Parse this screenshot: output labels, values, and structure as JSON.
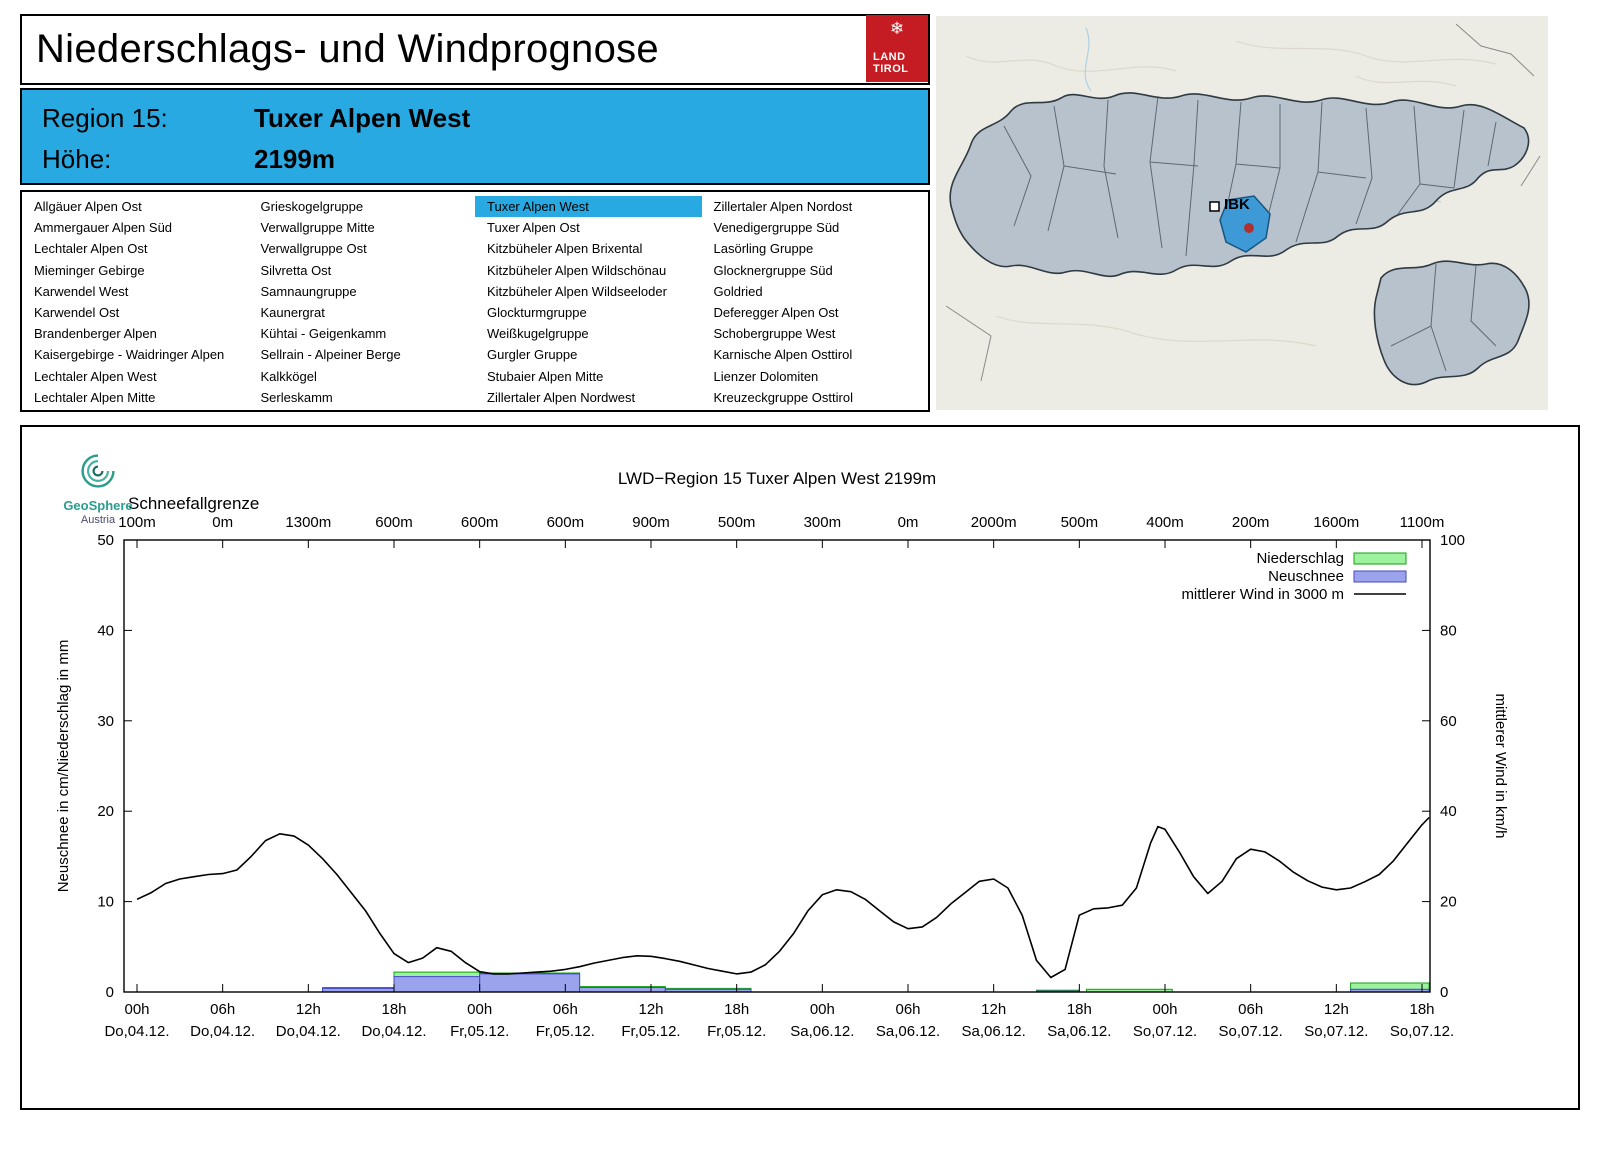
{
  "page_title": "Niederschlags- und Windprognose",
  "logo": {
    "snowflake": "❄",
    "line1": "LAND",
    "line2": "TIROL"
  },
  "region_info": {
    "region_label": "Region 15:",
    "region_value": "Tuxer Alpen West",
    "altitude_label": "Höhe:",
    "altitude_value": "2199m"
  },
  "map": {
    "city_label": "IBK"
  },
  "regions": {
    "selected": "Tuxer Alpen West",
    "columns": [
      [
        "Allgäuer Alpen Ost",
        "Ammergauer Alpen Süd",
        "Lechtaler Alpen Ost",
        "Mieminger Gebirge",
        "Karwendel West",
        "Karwendel Ost",
        "Brandenberger Alpen",
        "Kaisergebirge - Waidringer Alpen",
        "Lechtaler Alpen West",
        "Lechtaler Alpen Mitte"
      ],
      [
        "Grieskogelgruppe",
        "Verwallgruppe Mitte",
        "Verwallgruppe Ost",
        "Silvretta Ost",
        "Samnaungruppe",
        "Kaunergrat",
        "Kühtai - Geigenkamm",
        "Sellrain - Alpeiner Berge",
        "Kalkkögel",
        "Serleskamm"
      ],
      [
        "Tuxer Alpen West",
        "Tuxer Alpen Ost",
        "Kitzbüheler Alpen Brixental",
        "Kitzbüheler Alpen Wildschönau",
        "Kitzbüheler Alpen Wildseeloder",
        "Glockturmgruppe",
        "Weißkugelgruppe",
        "Gurgler Gruppe",
        "Stubaier Alpen Mitte",
        "Zillertaler Alpen Nordwest"
      ],
      [
        "Zillertaler Alpen Nordost",
        "Venedigergruppe Süd",
        "Lasörling Gruppe",
        "Glocknergruppe Süd",
        "Goldried",
        "Deferegger Alpen Ost",
        "Schobergruppe West",
        "Karnische Alpen Osttirol",
        "Lienzer Dolomiten",
        "Kreuzeckgruppe Osttirol"
      ]
    ]
  },
  "chart_data": {
    "type": "line+bar",
    "title": "LWD−Region 15 Tuxer Alpen West 2199m",
    "provider": {
      "name": "GeoSphere",
      "sub": "Austria"
    },
    "snowline_label": "Schneefallgrenze",
    "snowline_values": [
      "100m",
      "0m",
      "1300m",
      "600m",
      "600m",
      "600m",
      "900m",
      "500m",
      "300m",
      "0m",
      "2000m",
      "500m",
      "400m",
      "200m",
      "1600m",
      "1100m"
    ],
    "ylabel_left": "Neuschnee in cm/Niederschlag in mm",
    "ylabel_right": "mittlerer Wind in km/h",
    "ylim_left": [
      0,
      50
    ],
    "ylim_right": [
      0,
      100
    ],
    "yticks_left": [
      0,
      10,
      20,
      30,
      40,
      50
    ],
    "yticks_right": [
      0,
      20,
      40,
      60,
      80,
      100
    ],
    "x_range_hours": [
      -0.9,
      90.6
    ],
    "xticks": [
      {
        "hour": 0,
        "time": "00h",
        "date": "Do,04.12."
      },
      {
        "hour": 6,
        "time": "06h",
        "date": "Do,04.12."
      },
      {
        "hour": 12,
        "time": "12h",
        "date": "Do,04.12."
      },
      {
        "hour": 18,
        "time": "18h",
        "date": "Do,04.12."
      },
      {
        "hour": 24,
        "time": "00h",
        "date": "Fr,05.12."
      },
      {
        "hour": 30,
        "time": "06h",
        "date": "Fr,05.12."
      },
      {
        "hour": 36,
        "time": "12h",
        "date": "Fr,05.12."
      },
      {
        "hour": 42,
        "time": "18h",
        "date": "Fr,05.12."
      },
      {
        "hour": 48,
        "time": "00h",
        "date": "Sa,06.12."
      },
      {
        "hour": 54,
        "time": "06h",
        "date": "Sa,06.12."
      },
      {
        "hour": 60,
        "time": "12h",
        "date": "Sa,06.12."
      },
      {
        "hour": 66,
        "time": "18h",
        "date": "Sa,06.12."
      },
      {
        "hour": 72,
        "time": "00h",
        "date": "So,07.12."
      },
      {
        "hour": 78,
        "time": "06h",
        "date": "So,07.12."
      },
      {
        "hour": 84,
        "time": "12h",
        "date": "So,07.12."
      },
      {
        "hour": 90,
        "time": "18h",
        "date": "So,07.12."
      }
    ],
    "colors": {
      "precip_fill": "#9df29d",
      "precip_stroke": "#12a012",
      "snow_fill": "#9aa3ec",
      "snow_stroke": "#4348c8",
      "wind": "#000000",
      "highlight": "#29a9e2"
    },
    "legend": [
      {
        "label": "Niederschlag",
        "type": "box",
        "fill": "#9df29d",
        "stroke": "#12a012"
      },
      {
        "label": "Neuschnee",
        "type": "box",
        "fill": "#9aa3ec",
        "stroke": "#4348c8"
      },
      {
        "label": "mittlerer Wind in 3000 m",
        "type": "line",
        "stroke": "#000000"
      }
    ],
    "precip_segments_mm": [
      {
        "from": 13,
        "to": 18,
        "value": 0.5
      },
      {
        "from": 18,
        "to": 24,
        "value": 2.2
      },
      {
        "from": 24,
        "to": 31,
        "value": 2.1
      },
      {
        "from": 31,
        "to": 37,
        "value": 0.6
      },
      {
        "from": 37,
        "to": 43,
        "value": 0.4
      },
      {
        "from": 63,
        "to": 66,
        "value": 0.2
      },
      {
        "from": 66.5,
        "to": 72.5,
        "value": 0.3
      },
      {
        "from": 85,
        "to": 90.5,
        "value": 1.0
      }
    ],
    "snow_segments_cm": [
      {
        "from": 13,
        "to": 18,
        "value": 0.4
      },
      {
        "from": 18,
        "to": 24,
        "value": 1.7
      },
      {
        "from": 24,
        "to": 31,
        "value": 2.0
      },
      {
        "from": 31,
        "to": 37,
        "value": 0.5
      },
      {
        "from": 37,
        "to": 43,
        "value": 0.3
      },
      {
        "from": 63,
        "to": 66,
        "value": 0.1
      },
      {
        "from": 85,
        "to": 90.5,
        "value": 0.3
      }
    ],
    "wind_series": {
      "name": "mittlerer Wind in 3000 m",
      "unit": "km/h",
      "points": [
        [
          0,
          20.5
        ],
        [
          1,
          22
        ],
        [
          2,
          24
        ],
        [
          3,
          25
        ],
        [
          4,
          25.5
        ],
        [
          5,
          26
        ],
        [
          6,
          26.2
        ],
        [
          7,
          27
        ],
        [
          8,
          30
        ],
        [
          9,
          33.5
        ],
        [
          10,
          35
        ],
        [
          11,
          34.5
        ],
        [
          12,
          32.5
        ],
        [
          13,
          29.5
        ],
        [
          14,
          26
        ],
        [
          15,
          22
        ],
        [
          16,
          18
        ],
        [
          17,
          13
        ],
        [
          18,
          8.5
        ],
        [
          19,
          6.5
        ],
        [
          20,
          7.5
        ],
        [
          21,
          9.8
        ],
        [
          22,
          9
        ],
        [
          23,
          6.5
        ],
        [
          24,
          4.5
        ],
        [
          25,
          4
        ],
        [
          26,
          4
        ],
        [
          27,
          4.2
        ],
        [
          28,
          4.4
        ],
        [
          29,
          4.6
        ],
        [
          30,
          5
        ],
        [
          31,
          5.6
        ],
        [
          32,
          6.4
        ],
        [
          33,
          7
        ],
        [
          34,
          7.6
        ],
        [
          35,
          8
        ],
        [
          36,
          7.9
        ],
        [
          37,
          7.4
        ],
        [
          38,
          6.8
        ],
        [
          39,
          6
        ],
        [
          40,
          5.2
        ],
        [
          41,
          4.6
        ],
        [
          42,
          4
        ],
        [
          43,
          4.4
        ],
        [
          44,
          6
        ],
        [
          45,
          9
        ],
        [
          46,
          13
        ],
        [
          47,
          18
        ],
        [
          48,
          21.5
        ],
        [
          49,
          22.6
        ],
        [
          50,
          22.2
        ],
        [
          51,
          20.5
        ],
        [
          52,
          18
        ],
        [
          53,
          15.5
        ],
        [
          54,
          14
        ],
        [
          55,
          14.4
        ],
        [
          56,
          16.5
        ],
        [
          57,
          19.5
        ],
        [
          58,
          22
        ],
        [
          59,
          24.5
        ],
        [
          60,
          25
        ],
        [
          61,
          23
        ],
        [
          62,
          17
        ],
        [
          63,
          7
        ],
        [
          64,
          3.2
        ],
        [
          65,
          5
        ],
        [
          66,
          17
        ],
        [
          67,
          18.4
        ],
        [
          68,
          18.6
        ],
        [
          69,
          19.2
        ],
        [
          70,
          23
        ],
        [
          71,
          33
        ],
        [
          71.5,
          36.6
        ],
        [
          72,
          36
        ],
        [
          73,
          31
        ],
        [
          74,
          25.5
        ],
        [
          75,
          21.8
        ],
        [
          76,
          24.5
        ],
        [
          77,
          29.5
        ],
        [
          78,
          31.6
        ],
        [
          79,
          31
        ],
        [
          80,
          29
        ],
        [
          81,
          26.5
        ],
        [
          82,
          24.6
        ],
        [
          83,
          23.2
        ],
        [
          84,
          22.6
        ],
        [
          85,
          23
        ],
        [
          86,
          24.4
        ],
        [
          87,
          26
        ],
        [
          88,
          29
        ],
        [
          89,
          33
        ],
        [
          90,
          37
        ],
        [
          90.5,
          38.6
        ]
      ]
    }
  }
}
